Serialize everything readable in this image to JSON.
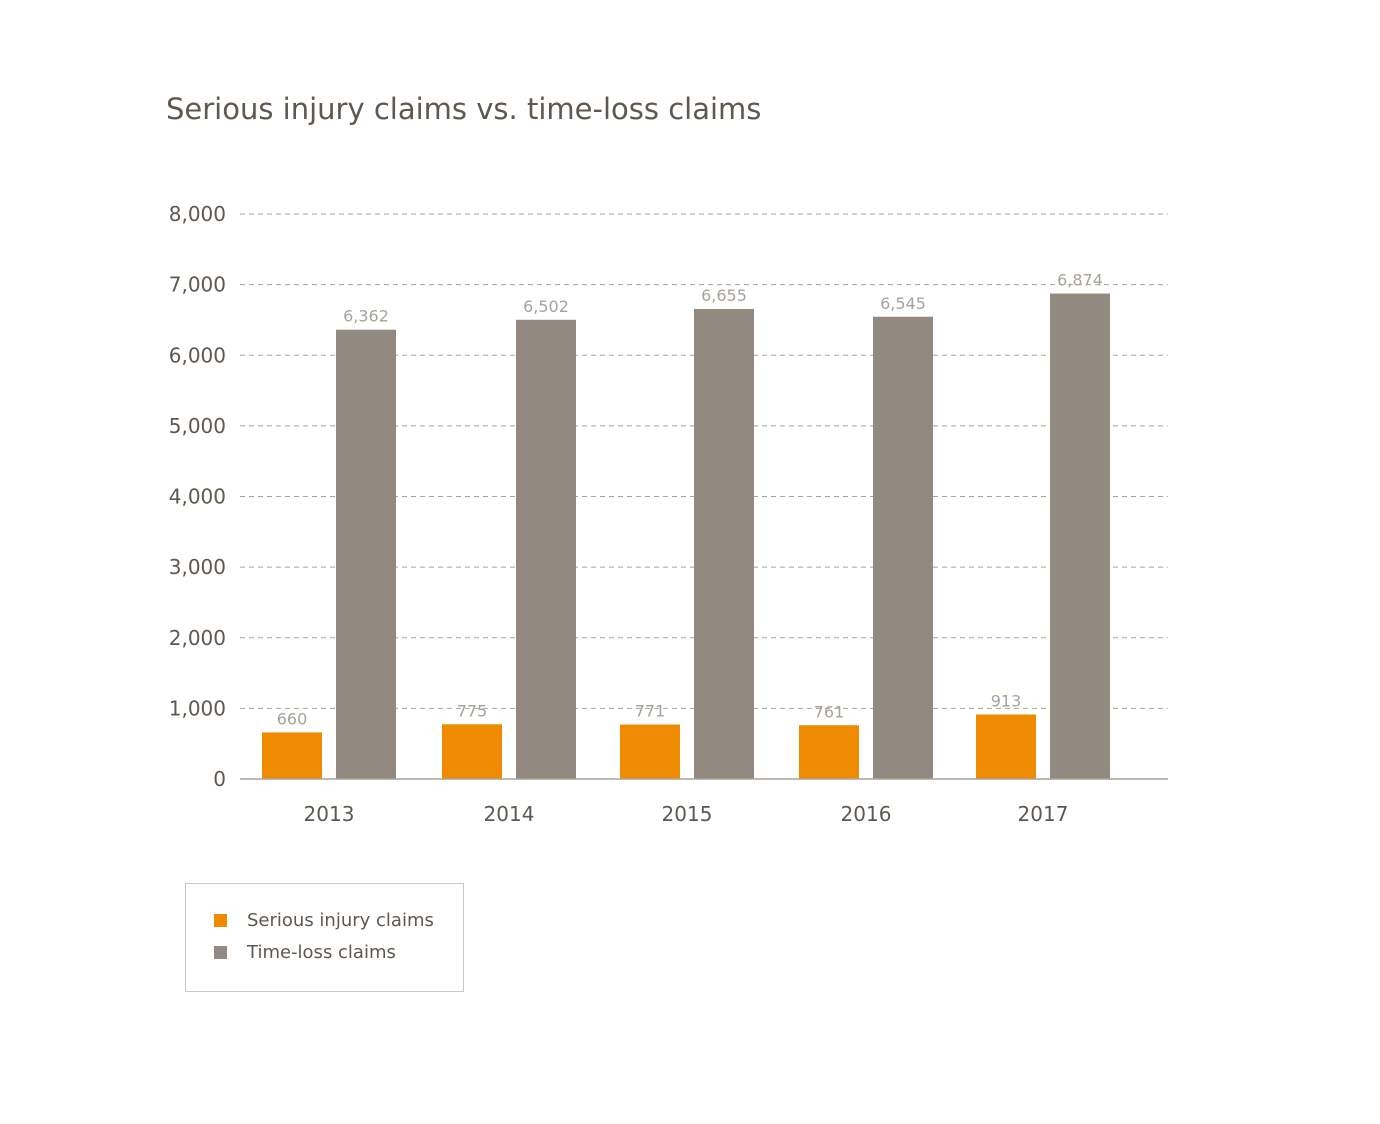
{
  "chart_data": {
    "type": "bar",
    "title": "Serious injury claims vs. time-loss claims",
    "categories": [
      "2013",
      "2014",
      "2015",
      "2016",
      "2017"
    ],
    "series": [
      {
        "name": "Serious injury claims",
        "color": "#ee8b00",
        "values": [
          660,
          775,
          771,
          761,
          913
        ],
        "labels": [
          "660",
          "775",
          "771",
          "761",
          "913"
        ]
      },
      {
        "name": "Time-loss claims",
        "color": "#928a81",
        "values": [
          6362,
          6502,
          6655,
          6545,
          6874
        ],
        "labels": [
          "6,362",
          "6,502",
          "6,655",
          "6,545",
          "6,874"
        ]
      }
    ],
    "yticks": [
      0,
      1000,
      2000,
      3000,
      4000,
      5000,
      6000,
      7000,
      8000
    ],
    "ytick_labels": [
      "0",
      "1,000",
      "2,000",
      "3,000",
      "4,000",
      "5,000",
      "6,000",
      "7,000",
      "8,000"
    ],
    "ylim": [
      0,
      8000
    ],
    "xlabel": "",
    "ylabel": "",
    "grid": true,
    "legend_position": "bottom-left"
  }
}
